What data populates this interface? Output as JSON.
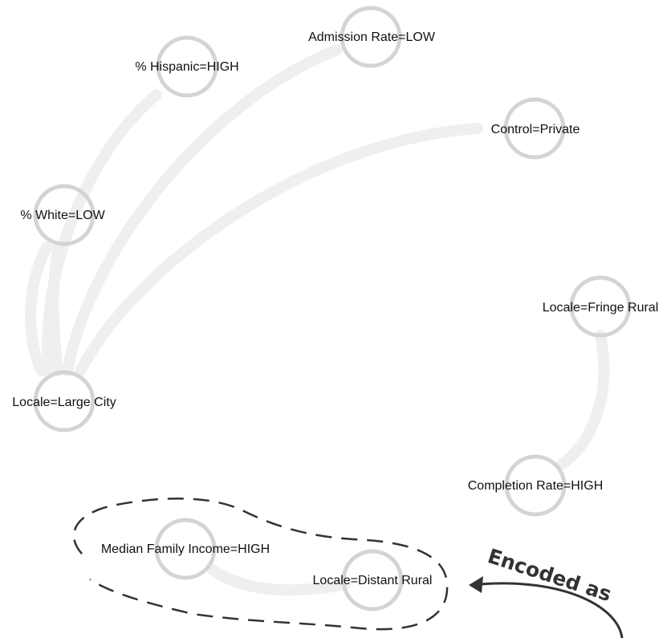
{
  "nodes": [
    {
      "id": "admission",
      "label": "Admission Rate=LOW"
    },
    {
      "id": "hispanic",
      "label": "% Hispanic=HIGH"
    },
    {
      "id": "control",
      "label": "Control=Private"
    },
    {
      "id": "white",
      "label": "% White=LOW"
    },
    {
      "id": "fringe",
      "label": "Locale=Fringe Rural"
    },
    {
      "id": "largecity",
      "label": "Locale=Large City"
    },
    {
      "id": "completion",
      "label": "Completion Rate=HIGH"
    },
    {
      "id": "income",
      "label": "Median Family Income=HIGH"
    },
    {
      "id": "distant",
      "label": "Locale=Distant Rural"
    }
  ],
  "edges": [
    {
      "from": "hispanic",
      "to": "largecity"
    },
    {
      "from": "admission",
      "to": "largecity"
    },
    {
      "from": "control",
      "to": "largecity"
    },
    {
      "from": "white",
      "to": "largecity"
    },
    {
      "from": "fringe",
      "to": "completion"
    },
    {
      "from": "income",
      "to": "distant"
    }
  ],
  "callout": {
    "text": "Encoded as"
  }
}
